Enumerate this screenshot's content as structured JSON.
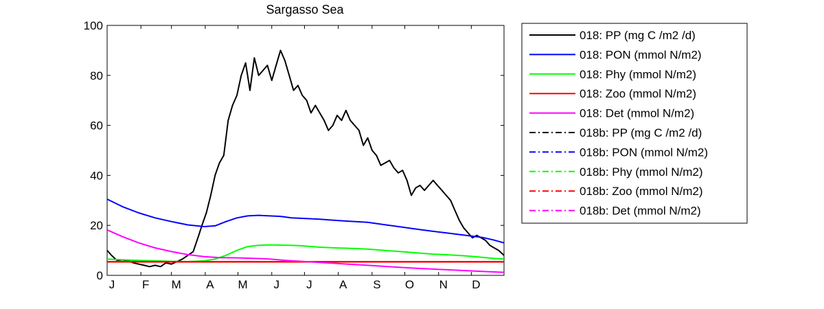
{
  "chart_data": {
    "type": "line",
    "title": "Sargasso Sea",
    "xlabel": "",
    "ylabel": "",
    "xlim": [
      1,
      365
    ],
    "ylim": [
      0,
      100
    ],
    "yticks": [
      0,
      20,
      40,
      60,
      80,
      100
    ],
    "xticks": [
      {
        "label": "J",
        "day": 1
      },
      {
        "label": "F",
        "day": 32
      },
      {
        "label": "M",
        "day": 60
      },
      {
        "label": "A",
        "day": 91
      },
      {
        "label": "M",
        "day": 121
      },
      {
        "label": "J",
        "day": 152
      },
      {
        "label": "J",
        "day": 182
      },
      {
        "label": "A",
        "day": 213
      },
      {
        "label": "S",
        "day": 244
      },
      {
        "label": "O",
        "day": 274
      },
      {
        "label": "N",
        "day": 305
      },
      {
        "label": "D",
        "day": 335
      }
    ],
    "grid": false,
    "legend_position": "outside-right",
    "series": [
      {
        "name": "018: PP (mg C /m2 /d)",
        "color": "#000000",
        "style": "solid",
        "x": [
          1,
          5,
          10,
          15,
          20,
          25,
          30,
          35,
          40,
          45,
          50,
          55,
          60,
          65,
          70,
          75,
          80,
          85,
          88,
          92,
          96,
          100,
          104,
          108,
          112,
          116,
          120,
          124,
          128,
          132,
          136,
          140,
          144,
          148,
          152,
          156,
          160,
          164,
          168,
          172,
          176,
          180,
          184,
          188,
          192,
          196,
          200,
          204,
          208,
          212,
          216,
          220,
          224,
          228,
          232,
          236,
          240,
          244,
          248,
          252,
          256,
          260,
          264,
          268,
          272,
          276,
          280,
          284,
          288,
          292,
          296,
          300,
          304,
          308,
          312,
          316,
          320,
          324,
          328,
          332,
          336,
          340,
          344,
          348,
          352,
          356,
          360,
          365
        ],
        "y": [
          10,
          8,
          6,
          5.5,
          6,
          5,
          4.5,
          4,
          3.5,
          4,
          3.5,
          5,
          4.5,
          5.5,
          6.5,
          8,
          9.5,
          16,
          20,
          25,
          32,
          40,
          45,
          48,
          62,
          68,
          72,
          80,
          85,
          74,
          87,
          80,
          82,
          84,
          78,
          84,
          90,
          86,
          80,
          74,
          76,
          72,
          70,
          65,
          68,
          65,
          62,
          58,
          60,
          64,
          62,
          66,
          62,
          60,
          58,
          52,
          55,
          50,
          48,
          44,
          45,
          46,
          43,
          41,
          42,
          38,
          32,
          35,
          36,
          34,
          36,
          38,
          36,
          34,
          32,
          30,
          26,
          22,
          19,
          17,
          15,
          16,
          15,
          14,
          12,
          11,
          10,
          8
        ]
      },
      {
        "name": "018: PON (mmol N/m2)",
        "color": "#0000ff",
        "style": "solid",
        "x": [
          1,
          15,
          30,
          45,
          60,
          75,
          90,
          100,
          110,
          120,
          130,
          140,
          150,
          160,
          170,
          180,
          195,
          210,
          225,
          240,
          255,
          270,
          285,
          300,
          315,
          330,
          345,
          355,
          365
        ],
        "y": [
          30.5,
          27.5,
          25,
          23,
          21.5,
          20.2,
          19.5,
          19.8,
          21.5,
          23,
          23.8,
          24,
          23.8,
          23.6,
          23,
          22.8,
          22.5,
          22,
          21.6,
          21.2,
          20.3,
          19.4,
          18.5,
          17.6,
          16.8,
          16,
          15.2,
          14.2,
          13
        ]
      },
      {
        "name": "018: Phy (mmol N/m2)",
        "color": "#00ff00",
        "style": "solid",
        "x": [
          1,
          15,
          30,
          45,
          60,
          75,
          90,
          100,
          110,
          120,
          130,
          140,
          150,
          160,
          170,
          180,
          195,
          210,
          225,
          240,
          255,
          270,
          285,
          300,
          315,
          330,
          345,
          355,
          365
        ],
        "y": [
          6.5,
          6.2,
          6,
          5.8,
          5.6,
          5.5,
          5.8,
          6.5,
          8,
          10,
          11.5,
          12,
          12.2,
          12.1,
          12,
          11.8,
          11.3,
          11,
          10.8,
          10.5,
          10,
          9.5,
          9,
          8.5,
          8.2,
          7.8,
          7.2,
          6.8,
          6.5
        ]
      },
      {
        "name": "018: Zoo (mmol N/m2)",
        "color": "#ff0000",
        "style": "solid",
        "x": [
          1,
          60,
          120,
          180,
          240,
          300,
          365
        ],
        "y": [
          5.4,
          5.4,
          5.4,
          5.4,
          5.4,
          5.4,
          5.4
        ]
      },
      {
        "name": "018: Det (mmol N/m2)",
        "color": "#ff00ff",
        "style": "solid",
        "x": [
          1,
          15,
          30,
          45,
          60,
          75,
          90,
          105,
          120,
          135,
          150,
          165,
          180,
          195,
          210,
          225,
          240,
          255,
          270,
          285,
          300,
          315,
          330,
          345,
          365
        ],
        "y": [
          18.2,
          15.5,
          13,
          11,
          9.5,
          8.3,
          7.5,
          7.1,
          7,
          6.8,
          6.5,
          6,
          5.6,
          5.2,
          4.8,
          4.4,
          4,
          3.6,
          3.2,
          2.8,
          2.5,
          2.2,
          1.9,
          1.6,
          1.2
        ]
      }
    ],
    "legend": [
      {
        "label": "018: PP (mg C /m2 /d)",
        "color": "#000000",
        "style": "solid"
      },
      {
        "label": "018: PON (mmol N/m2)",
        "color": "#0000ff",
        "style": "solid"
      },
      {
        "label": "018: Phy (mmol N/m2)",
        "color": "#00ff00",
        "style": "solid"
      },
      {
        "label": "018: Zoo (mmol N/m2)",
        "color": "#ff0000",
        "style": "solid"
      },
      {
        "label": "018: Det (mmol N/m2)",
        "color": "#ff00ff",
        "style": "solid"
      },
      {
        "label": "018b: PP (mg C /m2 /d)",
        "color": "#000000",
        "style": "dashdot"
      },
      {
        "label": "018b: PON (mmol N/m2)",
        "color": "#0000ff",
        "style": "dashdot"
      },
      {
        "label": "018b: Phy (mmol N/m2)",
        "color": "#00ff00",
        "style": "dashdot"
      },
      {
        "label": "018b: Zoo (mmol N/m2)",
        "color": "#ff0000",
        "style": "dashdot"
      },
      {
        "label": "018b: Det (mmol N/m2)",
        "color": "#ff00ff",
        "style": "dashdot"
      }
    ]
  }
}
